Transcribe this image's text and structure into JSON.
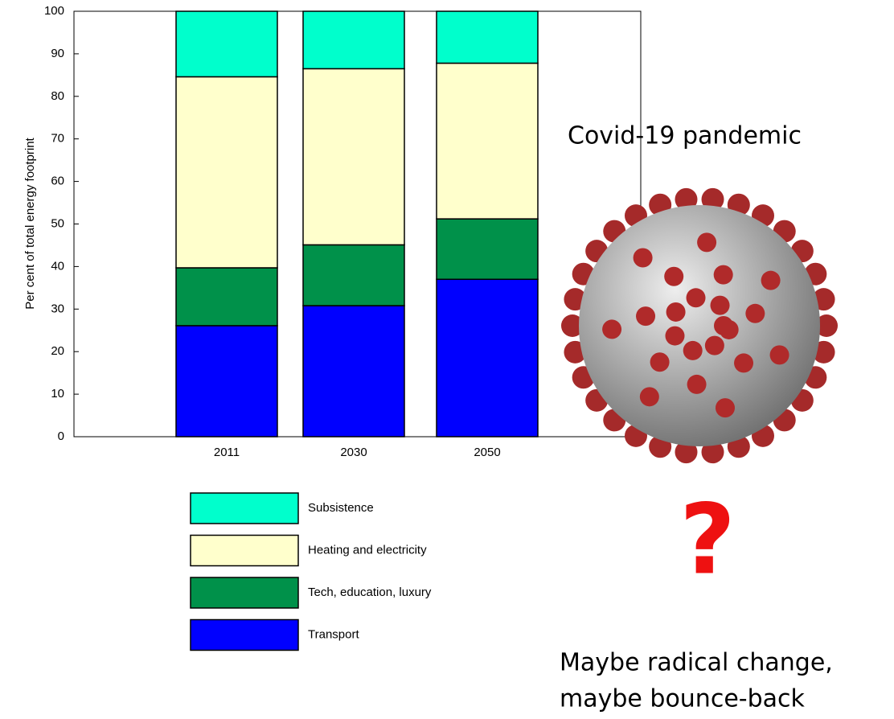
{
  "chart_data": {
    "type": "stacked-bar",
    "y_label": "Per cent of total energy footprint",
    "categories": [
      "2011",
      "2030",
      "2050"
    ],
    "series": [
      {
        "name": "Transport",
        "color": "#0000ff",
        "values": [
          26.1,
          30.8,
          37.0
        ]
      },
      {
        "name": "Tech, education, luxury",
        "color": "#00914a",
        "values": [
          13.6,
          14.3,
          14.2
        ]
      },
      {
        "name": "Heating and electricity",
        "color": "#ffffcc",
        "values": [
          44.9,
          41.4,
          36.6
        ]
      },
      {
        "name": "Subsistence",
        "color": "#00ffcc",
        "values": [
          15.4,
          13.5,
          12.2
        ]
      }
    ],
    "ylim": [
      0,
      100
    ],
    "yticks": [
      0,
      10,
      20,
      30,
      40,
      50,
      60,
      70,
      80,
      90,
      100
    ],
    "grid": false,
    "annotations": [
      "Covid-19 pandemic",
      "?",
      "Maybe radical change,",
      "maybe bounce-back"
    ]
  }
}
